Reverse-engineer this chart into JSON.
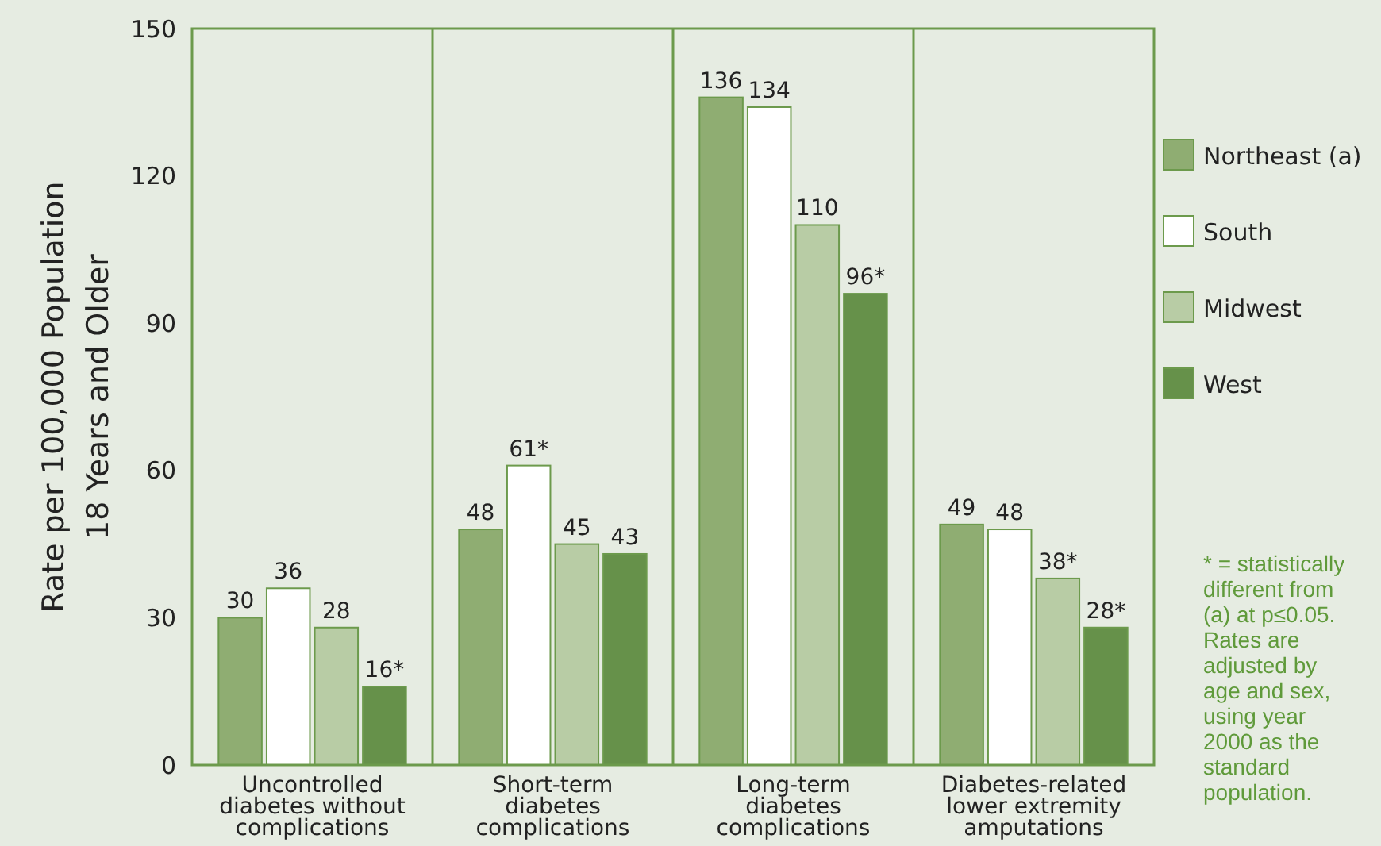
{
  "chart_data": {
    "type": "bar",
    "ylabel": "Rate per 100,000 Population\n18 Years and Older",
    "categories": [
      "Uncontrolled\ndiabetes without\ncomplications",
      "Short-term\ndiabetes\ncomplications",
      "Long-term\ndiabetes\ncomplications",
      "Diabetes-related\nlower extremity\namputations"
    ],
    "series": [
      {
        "name": "Northeast (a)",
        "color": "#8fad72",
        "values": [
          30,
          48,
          136,
          49
        ],
        "value_labels": [
          "30",
          "48",
          "136",
          "49"
        ]
      },
      {
        "name": "South",
        "color": "#ffffff",
        "values": [
          36,
          61,
          134,
          48
        ],
        "value_labels": [
          "36",
          "61*",
          "134",
          "48"
        ]
      },
      {
        "name": "Midwest",
        "color": "#b8cca5",
        "values": [
          28,
          45,
          110,
          38
        ],
        "value_labels": [
          "28",
          "45",
          "110",
          "38*"
        ]
      },
      {
        "name": "West",
        "color": "#66914a",
        "values": [
          16,
          43,
          96,
          28
        ],
        "value_labels": [
          "16*",
          "43",
          "96*",
          "28*"
        ]
      }
    ],
    "ylim": [
      0,
      150
    ],
    "yticks": [
      0,
      30,
      60,
      90,
      120,
      150
    ],
    "grid": false,
    "legend": "right",
    "annotations": [
      "* = statistically\ndifferent from\n(a) at p≤0.05.\nRates are\nadjusted by\nage and sex,\nusing year\n2000 as the\nstandard\npopulation."
    ]
  }
}
